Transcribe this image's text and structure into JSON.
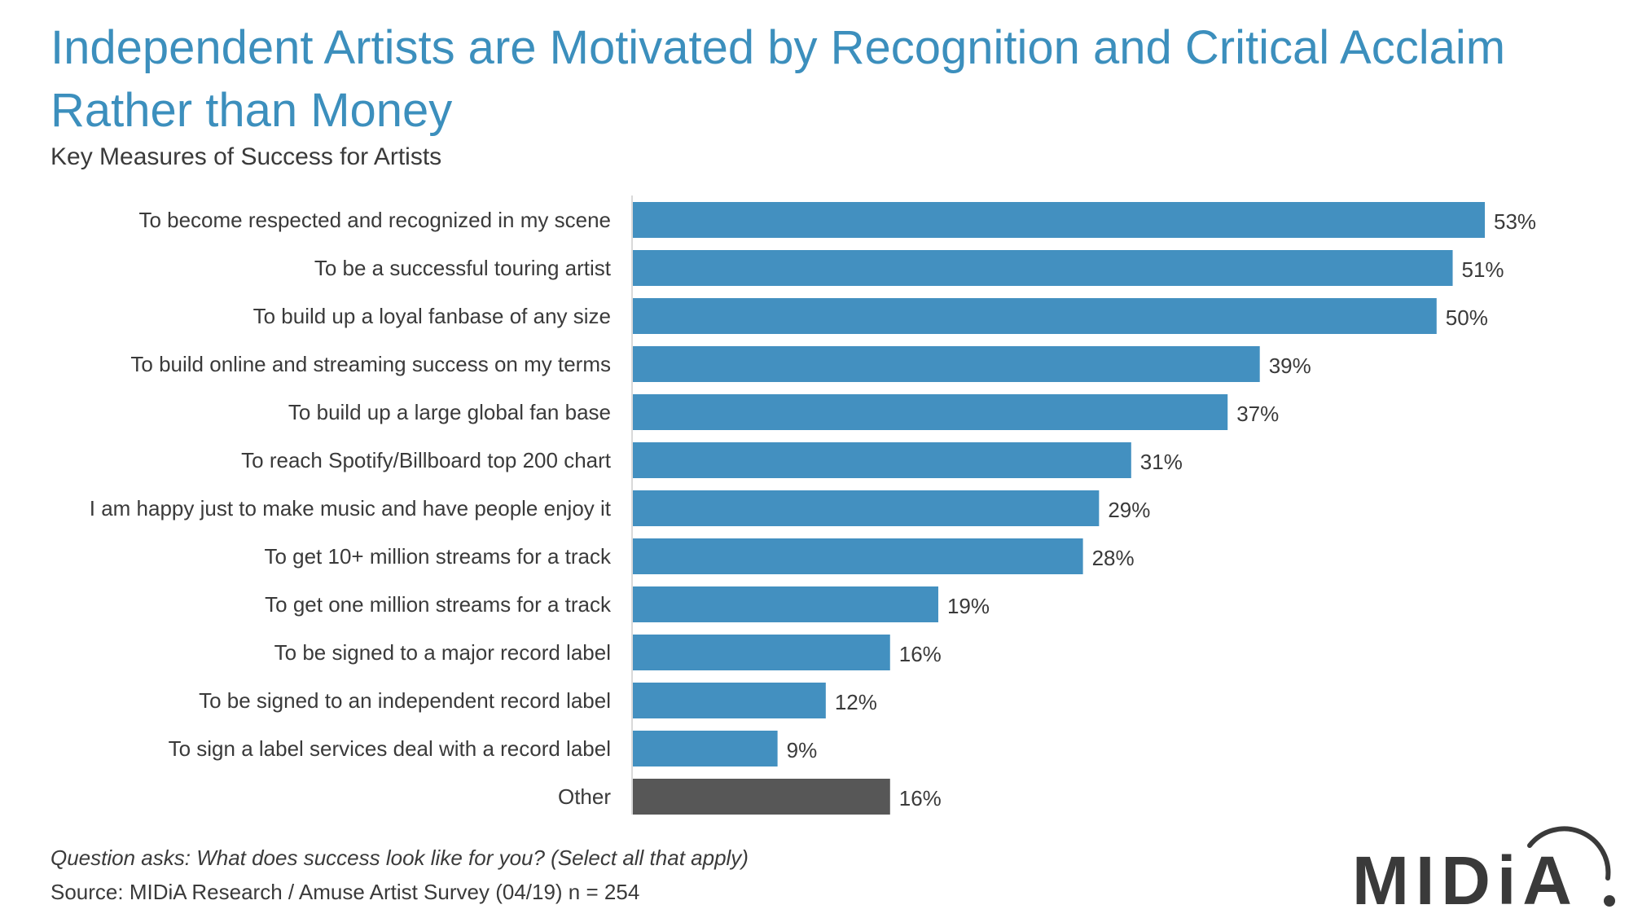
{
  "header": {
    "title": "Independent Artists are Motivated by Recognition and Critical Acclaim Rather than Money",
    "subtitle": "Key Measures of Success for Artists"
  },
  "footer": {
    "question": "Question asks: What does success look like for you? (Select all that apply)",
    "source": "Source: MIDiA Research / Amuse Artist Survey (04/19) n = 254",
    "logo_text": "MIDiA"
  },
  "colors": {
    "bar": "#4390c0",
    "bar_other": "#575757",
    "title": "#3c8fbd",
    "text": "#3a3a3a",
    "axis": "#d9d9d9"
  },
  "chart_data": {
    "type": "bar",
    "orientation": "horizontal",
    "categories": [
      "To become respected and recognized in my scene",
      "To be a successful touring artist",
      "To build up a loyal fanbase of any size",
      "To build online and streaming success on my terms",
      "To build up a large global fan base",
      "To reach Spotify/Billboard top 200 chart",
      "I am happy just to make music and have people enjoy it",
      "To get 10+ million streams for a track",
      "To get one million streams for a track",
      "To be signed to a major record label",
      "To be signed to an independent record label",
      "To sign a label services deal with a record label",
      "Other"
    ],
    "values": [
      53,
      51,
      50,
      39,
      37,
      31,
      29,
      28,
      19,
      16,
      12,
      9,
      16
    ],
    "value_labels": [
      "53%",
      "51%",
      "50%",
      "39%",
      "37%",
      "31%",
      "29%",
      "28%",
      "19%",
      "16%",
      "12%",
      "9%",
      "16%"
    ],
    "unit": "%",
    "highlight_category": "Other",
    "grid": false,
    "legend": "none",
    "title": "",
    "xlabel": "",
    "ylabel": ""
  }
}
